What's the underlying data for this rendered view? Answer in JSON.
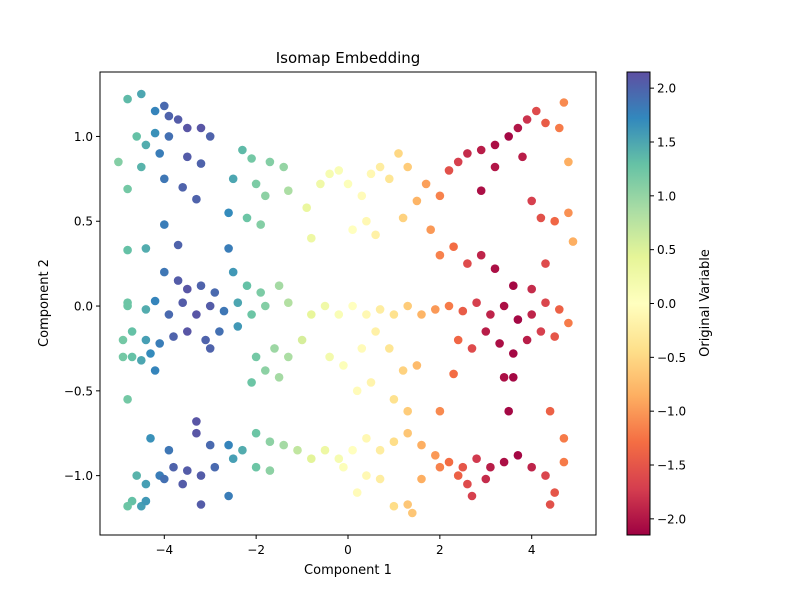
{
  "chart_data": {
    "type": "scatter",
    "title": "Isomap Embedding",
    "xlabel": "Component 1",
    "ylabel": "Component 2",
    "xlim": [
      -5.4,
      5.4
    ],
    "ylim": [
      -1.35,
      1.38
    ],
    "xticks": [
      -4,
      -2,
      0,
      2,
      4
    ],
    "xtick_labels": [
      "−4",
      "−2",
      "0",
      "2",
      "4"
    ],
    "yticks": [
      -1.0,
      -0.5,
      0.0,
      0.5,
      1.0
    ],
    "ytick_labels": [
      "−1.0",
      "−0.5",
      "0.0",
      "0.5",
      "1.0"
    ],
    "grid": false,
    "colorbar": {
      "label": "Original Variable",
      "colormap": "Spectral",
      "range": [
        -2.15,
        2.15
      ],
      "ticks": [
        -2.0,
        -1.5,
        -1.0,
        -0.5,
        0.0,
        0.5,
        1.0,
        1.5,
        2.0
      ],
      "tick_labels": [
        "−2.0",
        "−1.5",
        "−1.0",
        "−0.5",
        "0.0",
        "0.5",
        "1.0",
        "1.5",
        "2.0"
      ]
    },
    "points": [
      {
        "x": -4.8,
        "y": 1.22,
        "c": 1.35
      },
      {
        "x": -4.5,
        "y": 1.25,
        "c": 1.5
      },
      {
        "x": -4.2,
        "y": 1.15,
        "c": 1.75
      },
      {
        "x": -4.0,
        "y": 1.18,
        "c": 1.95
      },
      {
        "x": -3.9,
        "y": 1.12,
        "c": 2.0
      },
      {
        "x": -3.7,
        "y": 1.1,
        "c": 2.05
      },
      {
        "x": -3.5,
        "y": 1.05,
        "c": 2.1
      },
      {
        "x": -4.6,
        "y": 1.0,
        "c": 1.3
      },
      {
        "x": -4.4,
        "y": 0.95,
        "c": 1.45
      },
      {
        "x": -4.2,
        "y": 1.02,
        "c": 1.65
      },
      {
        "x": -3.9,
        "y": 1.0,
        "c": 1.9
      },
      {
        "x": -3.2,
        "y": 1.05,
        "c": 2.1
      },
      {
        "x": -3.0,
        "y": 1.0,
        "c": 2.0
      },
      {
        "x": -2.3,
        "y": 0.92,
        "c": 1.35
      },
      {
        "x": -2.1,
        "y": 0.87,
        "c": 1.2
      },
      {
        "x": -1.7,
        "y": 0.85,
        "c": 1.1
      },
      {
        "x": -1.4,
        "y": 0.82,
        "c": 1.0
      },
      {
        "x": -4.1,
        "y": 0.9,
        "c": 1.8
      },
      {
        "x": -3.5,
        "y": 0.88,
        "c": 2.05
      },
      {
        "x": -3.2,
        "y": 0.84,
        "c": 2.0
      },
      {
        "x": -5.0,
        "y": 0.85,
        "c": 1.1
      },
      {
        "x": -4.8,
        "y": 0.69,
        "c": 1.2
      },
      {
        "x": -4.5,
        "y": 0.82,
        "c": 1.4
      },
      {
        "x": -4.0,
        "y": 0.75,
        "c": 1.85
      },
      {
        "x": -3.6,
        "y": 0.7,
        "c": 2.0
      },
      {
        "x": -3.3,
        "y": 0.63,
        "c": 2.0
      },
      {
        "x": -2.5,
        "y": 0.75,
        "c": 1.5
      },
      {
        "x": -2.0,
        "y": 0.72,
        "c": 1.15
      },
      {
        "x": -1.8,
        "y": 0.65,
        "c": 1.05
      },
      {
        "x": -1.3,
        "y": 0.68,
        "c": 0.85
      },
      {
        "x": -2.6,
        "y": 0.55,
        "c": 1.7
      },
      {
        "x": -2.2,
        "y": 0.52,
        "c": 1.25
      },
      {
        "x": -1.9,
        "y": 0.48,
        "c": 1.1
      },
      {
        "x": -4.0,
        "y": 0.48,
        "c": 1.8
      },
      {
        "x": -3.7,
        "y": 0.36,
        "c": 2.0
      },
      {
        "x": -4.4,
        "y": 0.34,
        "c": 1.45
      },
      {
        "x": -4.8,
        "y": 0.33,
        "c": 1.3
      },
      {
        "x": -2.6,
        "y": 0.34,
        "c": 1.8
      },
      {
        "x": -0.9,
        "y": 0.58,
        "c": 0.35
      },
      {
        "x": -0.8,
        "y": 0.4,
        "c": 0.3
      },
      {
        "x": -0.6,
        "y": 0.72,
        "c": 0.25
      },
      {
        "x": -0.4,
        "y": 0.78,
        "c": 0.15
      },
      {
        "x": -0.2,
        "y": 0.8,
        "c": 0.1
      },
      {
        "x": 0.0,
        "y": 0.72,
        "c": 0.05
      },
      {
        "x": 0.3,
        "y": 0.65,
        "c": -0.05
      },
      {
        "x": 0.5,
        "y": 0.78,
        "c": -0.1
      },
      {
        "x": 0.7,
        "y": 0.82,
        "c": -0.25
      },
      {
        "x": 0.9,
        "y": 0.75,
        "c": -0.35
      },
      {
        "x": 1.1,
        "y": 0.9,
        "c": -0.5
      },
      {
        "x": 1.3,
        "y": 0.82,
        "c": -0.6
      },
      {
        "x": 0.1,
        "y": 0.45,
        "c": 0.0
      },
      {
        "x": 0.4,
        "y": 0.5,
        "c": -0.1
      },
      {
        "x": 0.6,
        "y": 0.42,
        "c": -0.2
      },
      {
        "x": 1.2,
        "y": 0.52,
        "c": -0.55
      },
      {
        "x": 1.5,
        "y": 0.62,
        "c": -0.8
      },
      {
        "x": 1.7,
        "y": 0.72,
        "c": -0.95
      },
      {
        "x": 2.0,
        "y": 0.65,
        "c": -1.15
      },
      {
        "x": 2.2,
        "y": 0.8,
        "c": -1.55
      },
      {
        "x": 2.4,
        "y": 0.85,
        "c": -1.7
      },
      {
        "x": 2.6,
        "y": 0.9,
        "c": -1.85
      },
      {
        "x": 2.9,
        "y": 0.92,
        "c": -1.95
      },
      {
        "x": 3.2,
        "y": 0.95,
        "c": -2.05
      },
      {
        "x": 3.5,
        "y": 1.0,
        "c": -2.1
      },
      {
        "x": 3.7,
        "y": 1.05,
        "c": -2.0
      },
      {
        "x": 3.9,
        "y": 1.1,
        "c": -1.8
      },
      {
        "x": 4.1,
        "y": 1.15,
        "c": -1.6
      },
      {
        "x": 4.3,
        "y": 1.08,
        "c": -1.45
      },
      {
        "x": 4.7,
        "y": 1.2,
        "c": -1.1
      },
      {
        "x": 4.6,
        "y": 1.05,
        "c": -1.2
      },
      {
        "x": 2.9,
        "y": 0.68,
        "c": -2.05
      },
      {
        "x": 3.2,
        "y": 0.82,
        "c": -2.0
      },
      {
        "x": 3.8,
        "y": 0.88,
        "c": -1.95
      },
      {
        "x": 4.0,
        "y": 0.62,
        "c": -1.7
      },
      {
        "x": 4.2,
        "y": 0.52,
        "c": -1.55
      },
      {
        "x": 4.5,
        "y": 0.5,
        "c": -1.35
      },
      {
        "x": 4.8,
        "y": 0.55,
        "c": -1.05
      },
      {
        "x": 4.9,
        "y": 0.38,
        "c": -0.85
      },
      {
        "x": 4.8,
        "y": 0.85,
        "c": -0.85
      },
      {
        "x": 2.3,
        "y": 0.35,
        "c": -1.3
      },
      {
        "x": 2.6,
        "y": 0.25,
        "c": -1.6
      },
      {
        "x": 2.9,
        "y": 0.3,
        "c": -1.9
      },
      {
        "x": 3.2,
        "y": 0.22,
        "c": -2.05
      },
      {
        "x": 3.6,
        "y": 0.12,
        "c": -2.1
      },
      {
        "x": 4.0,
        "y": 0.1,
        "c": -1.85
      },
      {
        "x": 4.3,
        "y": 0.25,
        "c": -1.6
      },
      {
        "x": 1.8,
        "y": 0.45,
        "c": -1.0
      },
      {
        "x": 2.0,
        "y": 0.3,
        "c": -1.15
      },
      {
        "x": -4.0,
        "y": 0.2,
        "c": 1.85
      },
      {
        "x": -3.7,
        "y": 0.15,
        "c": 2.05
      },
      {
        "x": -3.5,
        "y": 0.1,
        "c": 2.1
      },
      {
        "x": -3.2,
        "y": 0.12,
        "c": 2.0
      },
      {
        "x": -2.9,
        "y": 0.08,
        "c": 1.95
      },
      {
        "x": -2.5,
        "y": 0.2,
        "c": 1.6
      },
      {
        "x": -2.2,
        "y": 0.12,
        "c": 1.3
      },
      {
        "x": -1.9,
        "y": 0.08,
        "c": 1.15
      },
      {
        "x": -1.5,
        "y": 0.12,
        "c": 0.9
      },
      {
        "x": -1.3,
        "y": 0.02,
        "c": 0.8
      },
      {
        "x": -4.8,
        "y": 0.02,
        "c": 1.25
      },
      {
        "x": -4.4,
        "y": -0.02,
        "c": 1.45
      },
      {
        "x": -4.2,
        "y": 0.03,
        "c": 1.75
      },
      {
        "x": -3.9,
        "y": -0.05,
        "c": 1.95
      },
      {
        "x": -3.6,
        "y": 0.02,
        "c": 2.05
      },
      {
        "x": -3.3,
        "y": -0.05,
        "c": 2.1
      },
      {
        "x": -3.0,
        "y": 0.0,
        "c": 2.05
      },
      {
        "x": -2.7,
        "y": -0.03,
        "c": 1.85
      },
      {
        "x": -2.4,
        "y": 0.02,
        "c": 1.5
      },
      {
        "x": -2.1,
        "y": -0.05,
        "c": 1.25
      },
      {
        "x": -1.8,
        "y": 0.0,
        "c": 1.1
      },
      {
        "x": -4.7,
        "y": -0.15,
        "c": 1.3
      },
      {
        "x": -4.4,
        "y": -0.2,
        "c": 1.55
      },
      {
        "x": -4.1,
        "y": -0.22,
        "c": 1.8
      },
      {
        "x": -3.8,
        "y": -0.18,
        "c": 2.0
      },
      {
        "x": -3.5,
        "y": -0.15,
        "c": 2.1
      },
      {
        "x": -3.1,
        "y": -0.2,
        "c": 2.0
      },
      {
        "x": -2.8,
        "y": -0.15,
        "c": 1.9
      },
      {
        "x": -2.4,
        "y": -0.12,
        "c": 1.6
      },
      {
        "x": -4.3,
        "y": -0.28,
        "c": 1.7
      },
      {
        "x": -4.5,
        "y": -0.32,
        "c": 1.5
      },
      {
        "x": -4.2,
        "y": -0.38,
        "c": 1.75
      },
      {
        "x": -4.7,
        "y": -0.3,
        "c": 1.3
      },
      {
        "x": -3.0,
        "y": -0.25,
        "c": 2.0
      },
      {
        "x": -2.0,
        "y": -0.3,
        "c": 1.2
      },
      {
        "x": -1.6,
        "y": -0.25,
        "c": 0.95
      },
      {
        "x": -1.3,
        "y": -0.3,
        "c": 0.85
      },
      {
        "x": -1.0,
        "y": -0.2,
        "c": 0.55
      },
      {
        "x": -1.8,
        "y": -0.38,
        "c": 1.05
      },
      {
        "x": -1.5,
        "y": -0.42,
        "c": 0.9
      },
      {
        "x": -2.1,
        "y": -0.45,
        "c": 1.25
      },
      {
        "x": -0.8,
        "y": -0.05,
        "c": 0.4
      },
      {
        "x": -0.5,
        "y": 0.0,
        "c": 0.25
      },
      {
        "x": -0.2,
        "y": -0.05,
        "c": 0.1
      },
      {
        "x": 0.1,
        "y": 0.0,
        "c": 0.0
      },
      {
        "x": 0.4,
        "y": -0.05,
        "c": -0.1
      },
      {
        "x": 0.7,
        "y": -0.02,
        "c": -0.25
      },
      {
        "x": 1.0,
        "y": -0.05,
        "c": -0.4
      },
      {
        "x": 1.3,
        "y": 0.0,
        "c": -0.6
      },
      {
        "x": 1.6,
        "y": -0.05,
        "c": -0.8
      },
      {
        "x": 1.9,
        "y": -0.02,
        "c": -1.0
      },
      {
        "x": 2.2,
        "y": 0.0,
        "c": -1.2
      },
      {
        "x": 2.5,
        "y": -0.03,
        "c": -1.45
      },
      {
        "x": 2.8,
        "y": 0.02,
        "c": -1.7
      },
      {
        "x": 3.1,
        "y": -0.05,
        "c": -1.9
      },
      {
        "x": 3.4,
        "y": 0.0,
        "c": -2.05
      },
      {
        "x": 3.7,
        "y": -0.08,
        "c": -2.1
      },
      {
        "x": 4.0,
        "y": -0.05,
        "c": -1.9
      },
      {
        "x": 4.3,
        "y": 0.02,
        "c": -1.65
      },
      {
        "x": 4.6,
        "y": -0.02,
        "c": -1.4
      },
      {
        "x": 4.8,
        "y": -0.1,
        "c": -1.2
      },
      {
        "x": 3.0,
        "y": -0.15,
        "c": -1.95
      },
      {
        "x": 3.3,
        "y": -0.22,
        "c": -2.05
      },
      {
        "x": 3.6,
        "y": -0.28,
        "c": -2.1
      },
      {
        "x": 3.9,
        "y": -0.2,
        "c": -1.95
      },
      {
        "x": 4.2,
        "y": -0.15,
        "c": -1.7
      },
      {
        "x": 4.5,
        "y": -0.18,
        "c": -1.5
      },
      {
        "x": 2.4,
        "y": -0.2,
        "c": -1.35
      },
      {
        "x": 2.7,
        "y": -0.25,
        "c": -1.6
      },
      {
        "x": 3.4,
        "y": -0.42,
        "c": -2.05
      },
      {
        "x": 3.6,
        "y": -0.42,
        "c": -2.1
      },
      {
        "x": 2.3,
        "y": -0.4,
        "c": -1.3
      },
      {
        "x": 0.3,
        "y": -0.25,
        "c": -0.05
      },
      {
        "x": 0.6,
        "y": -0.15,
        "c": -0.2
      },
      {
        "x": 0.9,
        "y": -0.25,
        "c": -0.35
      },
      {
        "x": 1.2,
        "y": -0.38,
        "c": -0.55
      },
      {
        "x": 1.5,
        "y": -0.35,
        "c": -0.75
      },
      {
        "x": -0.4,
        "y": -0.3,
        "c": 0.2
      },
      {
        "x": -0.1,
        "y": -0.35,
        "c": 0.05
      },
      {
        "x": 0.2,
        "y": -0.5,
        "c": -0.05
      },
      {
        "x": 0.5,
        "y": -0.45,
        "c": -0.15
      },
      {
        "x": 1.0,
        "y": -0.55,
        "c": -0.4
      },
      {
        "x": 1.3,
        "y": -0.62,
        "c": -0.6
      },
      {
        "x": -2.0,
        "y": -0.75,
        "c": 1.25
      },
      {
        "x": -1.7,
        "y": -0.8,
        "c": 1.05
      },
      {
        "x": -1.4,
        "y": -0.82,
        "c": 0.9
      },
      {
        "x": -1.1,
        "y": -0.85,
        "c": 0.7
      },
      {
        "x": -0.8,
        "y": -0.9,
        "c": 0.45
      },
      {
        "x": -0.5,
        "y": -0.85,
        "c": 0.3
      },
      {
        "x": -0.2,
        "y": -0.9,
        "c": 0.15
      },
      {
        "x": 0.1,
        "y": -0.85,
        "c": 0.0
      },
      {
        "x": 0.4,
        "y": -0.78,
        "c": -0.1
      },
      {
        "x": 0.7,
        "y": -0.85,
        "c": -0.25
      },
      {
        "x": 1.0,
        "y": -0.8,
        "c": -0.45
      },
      {
        "x": 1.3,
        "y": -0.75,
        "c": -0.65
      },
      {
        "x": 1.6,
        "y": -0.82,
        "c": -0.85
      },
      {
        "x": 1.9,
        "y": -0.88,
        "c": -1.0
      },
      {
        "x": 2.2,
        "y": -0.92,
        "c": -1.3
      },
      {
        "x": 2.5,
        "y": -0.95,
        "c": -1.5
      },
      {
        "x": 2.8,
        "y": -0.9,
        "c": -1.75
      },
      {
        "x": 3.1,
        "y": -0.95,
        "c": -1.95
      },
      {
        "x": 3.4,
        "y": -0.92,
        "c": -2.05
      },
      {
        "x": 3.7,
        "y": -0.88,
        "c": -2.1
      },
      {
        "x": 4.0,
        "y": -0.95,
        "c": -1.9
      },
      {
        "x": 4.3,
        "y": -1.0,
        "c": -1.65
      },
      {
        "x": 4.7,
        "y": -0.78,
        "c": -1.2
      },
      {
        "x": 4.7,
        "y": -0.92,
        "c": -1.2
      },
      {
        "x": 4.4,
        "y": -0.62,
        "c": -1.4
      },
      {
        "x": 4.5,
        "y": -1.1,
        "c": -1.5
      },
      {
        "x": 4.4,
        "y": -1.17,
        "c": -1.55
      },
      {
        "x": 3.5,
        "y": -0.62,
        "c": -2.1
      },
      {
        "x": 2.0,
        "y": -0.62,
        "c": -1.1
      },
      {
        "x": 2.6,
        "y": -1.05,
        "c": -1.6
      },
      {
        "x": 3.0,
        "y": -1.02,
        "c": -1.85
      },
      {
        "x": 2.7,
        "y": -1.12,
        "c": -1.7
      },
      {
        "x": 2.4,
        "y": -1.0,
        "c": -1.4
      },
      {
        "x": 2.0,
        "y": -0.95,
        "c": -1.15
      },
      {
        "x": 1.6,
        "y": -1.02,
        "c": -0.85
      },
      {
        "x": 1.3,
        "y": -1.17,
        "c": -0.65
      },
      {
        "x": 1.0,
        "y": -1.18,
        "c": -0.45
      },
      {
        "x": 1.4,
        "y": -1.22,
        "c": -0.65
      },
      {
        "x": 0.7,
        "y": -1.02,
        "c": -0.25
      },
      {
        "x": 0.4,
        "y": -1.0,
        "c": -0.1
      },
      {
        "x": 0.2,
        "y": -1.1,
        "c": -0.05
      },
      {
        "x": -0.1,
        "y": -0.95,
        "c": 0.05
      },
      {
        "x": -1.7,
        "y": -0.97,
        "c": 1.05
      },
      {
        "x": -2.0,
        "y": -0.95,
        "c": 1.25
      },
      {
        "x": -2.3,
        "y": -0.85,
        "c": 1.45
      },
      {
        "x": -2.6,
        "y": -0.82,
        "c": 1.75
      },
      {
        "x": -2.9,
        "y": -0.95,
        "c": 1.95
      },
      {
        "x": -3.2,
        "y": -1.0,
        "c": 2.05
      },
      {
        "x": -3.5,
        "y": -0.97,
        "c": 2.05
      },
      {
        "x": -3.8,
        "y": -0.95,
        "c": 2.0
      },
      {
        "x": -4.1,
        "y": -1.0,
        "c": 1.8
      },
      {
        "x": -4.4,
        "y": -1.05,
        "c": 1.55
      },
      {
        "x": -4.6,
        "y": -1.0,
        "c": 1.4
      },
      {
        "x": -4.3,
        "y": -0.78,
        "c": 1.65
      },
      {
        "x": -3.9,
        "y": -0.85,
        "c": 1.85
      },
      {
        "x": -3.3,
        "y": -0.68,
        "c": 2.1
      },
      {
        "x": -3.3,
        "y": -0.75,
        "c": 2.1
      },
      {
        "x": -3.0,
        "y": -0.82,
        "c": 1.95
      },
      {
        "x": -2.5,
        "y": -0.9,
        "c": 1.55
      },
      {
        "x": -4.7,
        "y": -1.15,
        "c": 1.3
      },
      {
        "x": -4.8,
        "y": -1.18,
        "c": 1.25
      },
      {
        "x": -4.5,
        "y": -1.18,
        "c": 1.55
      },
      {
        "x": -4.4,
        "y": -1.15,
        "c": 1.6
      },
      {
        "x": -4.0,
        "y": -1.02,
        "c": 1.9
      },
      {
        "x": -3.6,
        "y": -1.05,
        "c": 2.05
      },
      {
        "x": -3.2,
        "y": -1.17,
        "c": 2.05
      },
      {
        "x": -2.6,
        "y": -1.12,
        "c": 1.8
      },
      {
        "x": -4.8,
        "y": -0.55,
        "c": 1.2
      },
      {
        "x": -4.9,
        "y": -0.2,
        "c": 1.2
      },
      {
        "x": -4.8,
        "y": 0.0,
        "c": 1.25
      },
      {
        "x": -4.9,
        "y": -0.3,
        "c": 1.2
      }
    ]
  }
}
